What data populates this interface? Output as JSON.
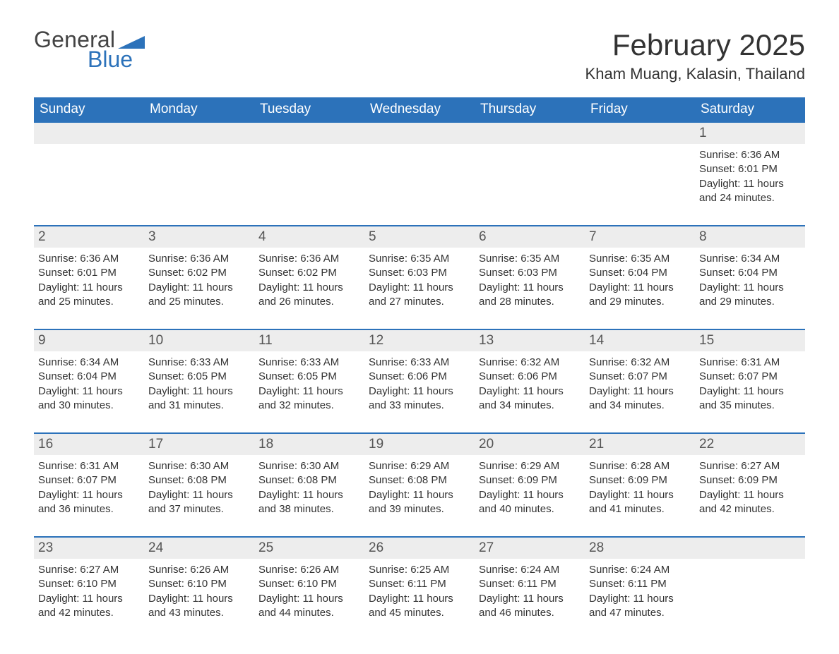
{
  "branding": {
    "general_text": "General",
    "blue_text": "Blue",
    "logo_accent_color": "#2c72ba",
    "logo_text_color": "#444444"
  },
  "header": {
    "month_title": "February 2025",
    "location": "Kham Muang, Kalasin, Thailand"
  },
  "calendar": {
    "header_bg": "#2c72ba",
    "header_text_color": "#ffffff",
    "daynum_bg": "#ededed",
    "separator_color": "#2c72ba",
    "body_text_color": "#333333",
    "days_of_week": [
      "Sunday",
      "Monday",
      "Tuesday",
      "Wednesday",
      "Thursday",
      "Friday",
      "Saturday"
    ],
    "weeks": [
      {
        "days": [
          null,
          null,
          null,
          null,
          null,
          null,
          {
            "n": "1",
            "sunrise": "Sunrise: 6:36 AM",
            "sunset": "Sunset: 6:01 PM",
            "daylight": "Daylight: 11 hours and 24 minutes."
          }
        ]
      },
      {
        "days": [
          {
            "n": "2",
            "sunrise": "Sunrise: 6:36 AM",
            "sunset": "Sunset: 6:01 PM",
            "daylight": "Daylight: 11 hours and 25 minutes."
          },
          {
            "n": "3",
            "sunrise": "Sunrise: 6:36 AM",
            "sunset": "Sunset: 6:02 PM",
            "daylight": "Daylight: 11 hours and 25 minutes."
          },
          {
            "n": "4",
            "sunrise": "Sunrise: 6:36 AM",
            "sunset": "Sunset: 6:02 PM",
            "daylight": "Daylight: 11 hours and 26 minutes."
          },
          {
            "n": "5",
            "sunrise": "Sunrise: 6:35 AM",
            "sunset": "Sunset: 6:03 PM",
            "daylight": "Daylight: 11 hours and 27 minutes."
          },
          {
            "n": "6",
            "sunrise": "Sunrise: 6:35 AM",
            "sunset": "Sunset: 6:03 PM",
            "daylight": "Daylight: 11 hours and 28 minutes."
          },
          {
            "n": "7",
            "sunrise": "Sunrise: 6:35 AM",
            "sunset": "Sunset: 6:04 PM",
            "daylight": "Daylight: 11 hours and 29 minutes."
          },
          {
            "n": "8",
            "sunrise": "Sunrise: 6:34 AM",
            "sunset": "Sunset: 6:04 PM",
            "daylight": "Daylight: 11 hours and 29 minutes."
          }
        ]
      },
      {
        "days": [
          {
            "n": "9",
            "sunrise": "Sunrise: 6:34 AM",
            "sunset": "Sunset: 6:04 PM",
            "daylight": "Daylight: 11 hours and 30 minutes."
          },
          {
            "n": "10",
            "sunrise": "Sunrise: 6:33 AM",
            "sunset": "Sunset: 6:05 PM",
            "daylight": "Daylight: 11 hours and 31 minutes."
          },
          {
            "n": "11",
            "sunrise": "Sunrise: 6:33 AM",
            "sunset": "Sunset: 6:05 PM",
            "daylight": "Daylight: 11 hours and 32 minutes."
          },
          {
            "n": "12",
            "sunrise": "Sunrise: 6:33 AM",
            "sunset": "Sunset: 6:06 PM",
            "daylight": "Daylight: 11 hours and 33 minutes."
          },
          {
            "n": "13",
            "sunrise": "Sunrise: 6:32 AM",
            "sunset": "Sunset: 6:06 PM",
            "daylight": "Daylight: 11 hours and 34 minutes."
          },
          {
            "n": "14",
            "sunrise": "Sunrise: 6:32 AM",
            "sunset": "Sunset: 6:07 PM",
            "daylight": "Daylight: 11 hours and 34 minutes."
          },
          {
            "n": "15",
            "sunrise": "Sunrise: 6:31 AM",
            "sunset": "Sunset: 6:07 PM",
            "daylight": "Daylight: 11 hours and 35 minutes."
          }
        ]
      },
      {
        "days": [
          {
            "n": "16",
            "sunrise": "Sunrise: 6:31 AM",
            "sunset": "Sunset: 6:07 PM",
            "daylight": "Daylight: 11 hours and 36 minutes."
          },
          {
            "n": "17",
            "sunrise": "Sunrise: 6:30 AM",
            "sunset": "Sunset: 6:08 PM",
            "daylight": "Daylight: 11 hours and 37 minutes."
          },
          {
            "n": "18",
            "sunrise": "Sunrise: 6:30 AM",
            "sunset": "Sunset: 6:08 PM",
            "daylight": "Daylight: 11 hours and 38 minutes."
          },
          {
            "n": "19",
            "sunrise": "Sunrise: 6:29 AM",
            "sunset": "Sunset: 6:08 PM",
            "daylight": "Daylight: 11 hours and 39 minutes."
          },
          {
            "n": "20",
            "sunrise": "Sunrise: 6:29 AM",
            "sunset": "Sunset: 6:09 PM",
            "daylight": "Daylight: 11 hours and 40 minutes."
          },
          {
            "n": "21",
            "sunrise": "Sunrise: 6:28 AM",
            "sunset": "Sunset: 6:09 PM",
            "daylight": "Daylight: 11 hours and 41 minutes."
          },
          {
            "n": "22",
            "sunrise": "Sunrise: 6:27 AM",
            "sunset": "Sunset: 6:09 PM",
            "daylight": "Daylight: 11 hours and 42 minutes."
          }
        ]
      },
      {
        "days": [
          {
            "n": "23",
            "sunrise": "Sunrise: 6:27 AM",
            "sunset": "Sunset: 6:10 PM",
            "daylight": "Daylight: 11 hours and 42 minutes."
          },
          {
            "n": "24",
            "sunrise": "Sunrise: 6:26 AM",
            "sunset": "Sunset: 6:10 PM",
            "daylight": "Daylight: 11 hours and 43 minutes."
          },
          {
            "n": "25",
            "sunrise": "Sunrise: 6:26 AM",
            "sunset": "Sunset: 6:10 PM",
            "daylight": "Daylight: 11 hours and 44 minutes."
          },
          {
            "n": "26",
            "sunrise": "Sunrise: 6:25 AM",
            "sunset": "Sunset: 6:11 PM",
            "daylight": "Daylight: 11 hours and 45 minutes."
          },
          {
            "n": "27",
            "sunrise": "Sunrise: 6:24 AM",
            "sunset": "Sunset: 6:11 PM",
            "daylight": "Daylight: 11 hours and 46 minutes."
          },
          {
            "n": "28",
            "sunrise": "Sunrise: 6:24 AM",
            "sunset": "Sunset: 6:11 PM",
            "daylight": "Daylight: 11 hours and 47 minutes."
          },
          null
        ]
      }
    ]
  }
}
